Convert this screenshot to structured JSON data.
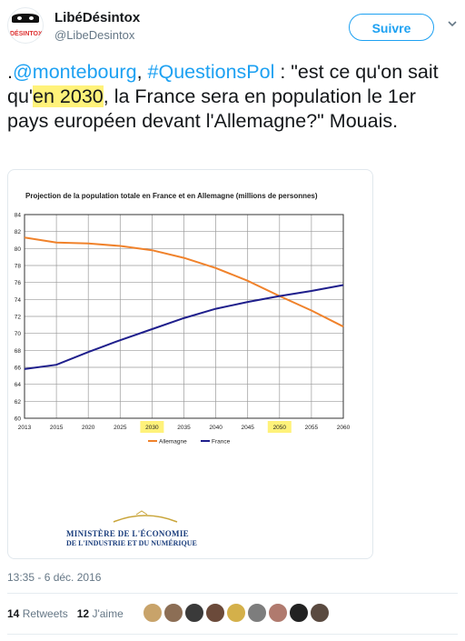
{
  "tweet": {
    "name": "LibéDésintox",
    "handle": "@LibeDesintox",
    "avatar_text": "DÉSINTOX",
    "follow_label": "Suivre",
    "text_parts": [
      {
        "t": ".",
        "cls": ""
      },
      {
        "t": "@montebourg",
        "cls": "link"
      },
      {
        "t": ", ",
        "cls": ""
      },
      {
        "t": "#QuestionsPol",
        "cls": "link"
      },
      {
        "t": " : \"est ce qu'on sait qu'",
        "cls": ""
      },
      {
        "t": "en 2030",
        "cls": "hl"
      },
      {
        "t": ", la France sera en population le 1er pays européen devant l'Allemagne?\" Mouais.",
        "cls": ""
      }
    ],
    "timestamp": "13:35 - 6 déc. 2016",
    "retweets_count": "14",
    "retweets_label": "Retweets",
    "likes_count": "12",
    "likes_label": "J'aime",
    "liker_avatar_colors": [
      "#c8a36a",
      "#8c6e55",
      "#3a3a3a",
      "#6b4a3a",
      "#d4b04a",
      "#7d7d7d",
      "#b07a6e",
      "#222222",
      "#5a4a40"
    ]
  },
  "media": {
    "ministere_line1": "MINISTÈRE DE L'ÉCONOMIE",
    "ministere_line2": "DE L'INDUSTRIE ET DU NUMÉRIQUE"
  },
  "chart_data": {
    "type": "line",
    "title": "Projection de la population totale en France et en Allemagne (millions de personnes)",
    "x": [
      2013,
      2015,
      2020,
      2025,
      2030,
      2035,
      2040,
      2045,
      2050,
      2055,
      2060
    ],
    "x_ticks": [
      "2013",
      "2015",
      "2020",
      "2025",
      "2030",
      "2035",
      "2040",
      "2045",
      "2050",
      "2055",
      "2060"
    ],
    "highlighted_ticks": [
      "2030",
      "2050"
    ],
    "y_ticks": [
      "60",
      "62",
      "64",
      "66",
      "68",
      "70",
      "72",
      "74",
      "76",
      "78",
      "80",
      "82",
      "84"
    ],
    "ylim": [
      60,
      84
    ],
    "grid": true,
    "legend_position": "bottom",
    "series": [
      {
        "name": "Allemagne",
        "color": "#f0822b",
        "values": [
          81.3,
          80.7,
          80.6,
          80.3,
          79.8,
          78.9,
          77.7,
          76.2,
          74.4,
          72.7,
          70.8
        ]
      },
      {
        "name": "France",
        "color": "#1f1f8c",
        "values": [
          65.8,
          66.3,
          67.8,
          69.2,
          70.5,
          71.8,
          72.9,
          73.7,
          74.4,
          75.0,
          75.7
        ]
      }
    ]
  }
}
